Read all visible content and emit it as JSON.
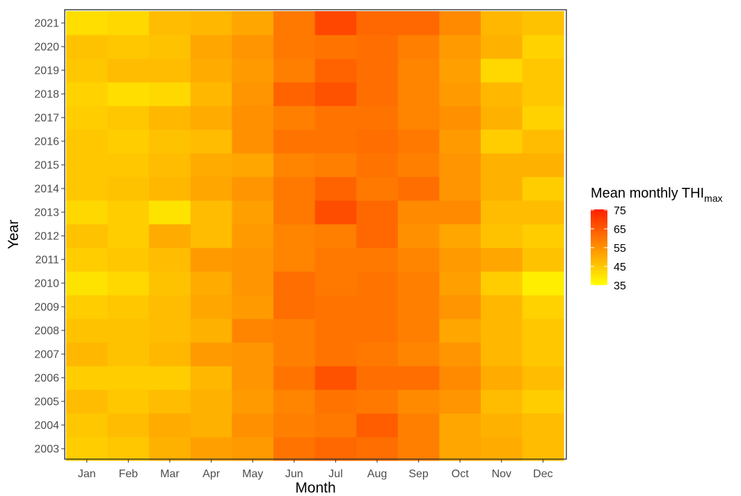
{
  "chart_data": {
    "type": "heatmap",
    "title": "",
    "xlabel": "Month",
    "ylabel": "Year",
    "x_categories": [
      "Jan",
      "Feb",
      "Mar",
      "Apr",
      "May",
      "Jun",
      "Jul",
      "Aug",
      "Sep",
      "Oct",
      "Nov",
      "Dec"
    ],
    "y_categories": [
      "2003",
      "2004",
      "2005",
      "2006",
      "2007",
      "2008",
      "2009",
      "2010",
      "2011",
      "2012",
      "2013",
      "2014",
      "2015",
      "2016",
      "2017",
      "2018",
      "2019",
      "2020",
      "2021"
    ],
    "values": {
      "2021": [
        41,
        42,
        47,
        48,
        51,
        59,
        68,
        62,
        62,
        56,
        48,
        46
      ],
      "2020": [
        46,
        45,
        46,
        51,
        54,
        59,
        60,
        61,
        58,
        53,
        49,
        43
      ],
      "2019": [
        45,
        47,
        47,
        50,
        53,
        58,
        63,
        61,
        57,
        52,
        42,
        45
      ],
      "2018": [
        43,
        41,
        42,
        48,
        54,
        63,
        66,
        61,
        57,
        53,
        48,
        45
      ],
      "2017": [
        44,
        45,
        48,
        50,
        55,
        58,
        60,
        60,
        57,
        55,
        49,
        43
      ],
      "2016": [
        45,
        44,
        46,
        47,
        55,
        60,
        60,
        61,
        59,
        53,
        44,
        47
      ],
      "2015": [
        45,
        45,
        47,
        50,
        51,
        57,
        58,
        60,
        58,
        54,
        49,
        49
      ],
      "2014": [
        45,
        46,
        48,
        51,
        54,
        59,
        63,
        59,
        61,
        54,
        49,
        44
      ],
      "2013": [
        42,
        44,
        40,
        47,
        52,
        59,
        67,
        62,
        56,
        56,
        47,
        47
      ],
      "2012": [
        46,
        44,
        50,
        47,
        53,
        57,
        58,
        62,
        55,
        51,
        46,
        44
      ],
      "2011": [
        44,
        45,
        47,
        53,
        54,
        57,
        59,
        59,
        57,
        53,
        51,
        46
      ],
      "2010": [
        40,
        42,
        46,
        50,
        54,
        61,
        59,
        60,
        58,
        52,
        44,
        38
      ],
      "2009": [
        44,
        45,
        47,
        51,
        53,
        61,
        60,
        60,
        58,
        54,
        48,
        43
      ],
      "2008": [
        46,
        46,
        47,
        49,
        57,
        58,
        60,
        60,
        58,
        51,
        48,
        45
      ],
      "2007": [
        48,
        46,
        48,
        53,
        54,
        58,
        60,
        59,
        57,
        54,
        48,
        45
      ],
      "2006": [
        44,
        44,
        44,
        48,
        54,
        60,
        66,
        61,
        61,
        56,
        50,
        47
      ],
      "2005": [
        47,
        45,
        47,
        49,
        53,
        57,
        60,
        59,
        56,
        54,
        47,
        44
      ],
      "2004": [
        45,
        47,
        50,
        49,
        55,
        58,
        59,
        64,
        58,
        51,
        49,
        47
      ],
      "2003": [
        44,
        45,
        49,
        52,
        53,
        60,
        62,
        61,
        58,
        51,
        50,
        47
      ]
    },
    "legend": {
      "title": "Mean monthly THI",
      "title_subscript": "max",
      "labels": [
        "75",
        "65",
        "55",
        "45",
        "35"
      ],
      "min": 35,
      "max": 75,
      "color_low": "#ffff00",
      "color_high": "#ff2000",
      "position": "right"
    },
    "grid": true
  }
}
